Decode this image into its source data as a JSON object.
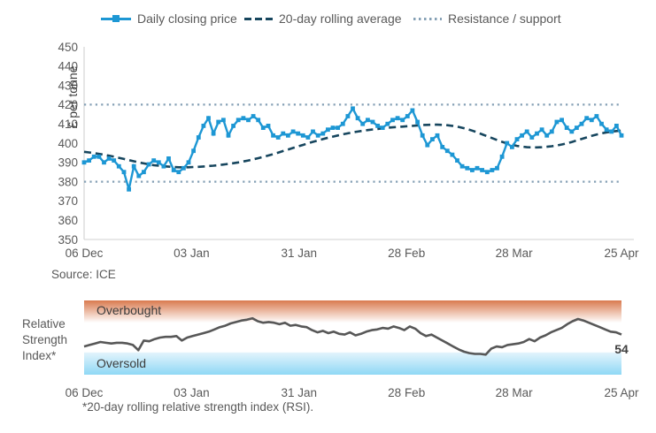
{
  "legend": {
    "items": [
      {
        "label": "Daily closing price",
        "color": "#1d97d4",
        "style": "solid-line-square-marker"
      },
      {
        "label": "20-day rolling average",
        "color": "#17465e",
        "style": "dashed-line"
      },
      {
        "label": "Resistance / support",
        "color": "#85a0b5",
        "style": "dotted-line"
      }
    ]
  },
  "main_chart": {
    "y_axis_title": "£ per tonne"
  },
  "source_note": "Source: ICE",
  "rsi_chart": {
    "axis_title_lines": [
      "Relative",
      "Strength",
      "Index*"
    ],
    "overbought_label": "Overbought",
    "oversold_label": "Oversold",
    "current_value_label": "54"
  },
  "footnote": "*20-day rolling relative strength index (RSI).",
  "colors": {
    "daily_line": "#1d97d4",
    "rolling_average": "#17465e",
    "resistance_support": "#85a0b5",
    "axis_line": "#d9d9d9",
    "tick_text": "#595959",
    "rsi_line": "#575757",
    "overbought_gradient_top": "#d97a4f",
    "oversold_gradient_bottom": "#8fd8f5"
  },
  "chart_data": [
    {
      "type": "line",
      "ylabel": "£ per tonne",
      "ylim": [
        350,
        450
      ],
      "y_ticks": [
        350,
        360,
        370,
        380,
        390,
        400,
        410,
        420,
        430,
        440,
        450
      ],
      "x_tick_labels": [
        "06 Dec",
        "03 Jan",
        "31 Jan",
        "28 Feb",
        "28 Mar",
        "25 Apr"
      ],
      "levels": [
        420,
        380
      ],
      "levels_name": "Resistance / support",
      "grid": false,
      "legend_position": "top",
      "series": [
        {
          "name": "Daily closing price",
          "color": "#1d97d4",
          "style": "solid-markers",
          "values": [
            390,
            391,
            393,
            393,
            390,
            392,
            391,
            388,
            385,
            376,
            388,
            383,
            385,
            389,
            391,
            390,
            388,
            392,
            386,
            385,
            387,
            390,
            396,
            403,
            409,
            413,
            405,
            411,
            412,
            404,
            409,
            412,
            413,
            412,
            414,
            412,
            408,
            409,
            404,
            403,
            405,
            404,
            406,
            405,
            404,
            403,
            406,
            404,
            405,
            407,
            408,
            408,
            410,
            414,
            418,
            413,
            410,
            412,
            411,
            409,
            408,
            410,
            412,
            413,
            412,
            414,
            417,
            411,
            404,
            399,
            402,
            404,
            398,
            396,
            394,
            391,
            388,
            387,
            386,
            387,
            386,
            385,
            386,
            387,
            393,
            400,
            398,
            402,
            404,
            406,
            403,
            405,
            407,
            404,
            406,
            411,
            412,
            408,
            406,
            408,
            410,
            413,
            412,
            414,
            410,
            407,
            406,
            409,
            404
          ]
        },
        {
          "name": "20-day rolling average",
          "color": "#17465e",
          "style": "dashed",
          "values": [
            395.5,
            395.2,
            394.8,
            394.4,
            394.0,
            393.5,
            393.0,
            392.4,
            391.8,
            391.2,
            390.6,
            390.0,
            389.5,
            389.0,
            388.6,
            388.3,
            388.0,
            387.8,
            387.6,
            387.5,
            387.5,
            387.5,
            387.6,
            387.7,
            387.9,
            388.1,
            388.3,
            388.6,
            388.9,
            389.2,
            389.6,
            390.0,
            390.5,
            391.0,
            391.6,
            392.2,
            392.9,
            393.6,
            394.3,
            395.1,
            395.9,
            396.7,
            397.5,
            398.3,
            399.1,
            399.9,
            400.7,
            401.4,
            402.1,
            402.8,
            403.4,
            404.0,
            404.6,
            405.1,
            405.6,
            406.0,
            406.4,
            406.8,
            407.1,
            407.4,
            407.7,
            408.0,
            408.2,
            408.4,
            408.6,
            408.8,
            409.0,
            409.2,
            409.4,
            409.5,
            409.6,
            409.6,
            409.5,
            409.3,
            409.0,
            408.6,
            408.0,
            407.3,
            406.5,
            405.6,
            404.6,
            403.6,
            402.6,
            401.6,
            400.7,
            399.9,
            399.2,
            398.6,
            398.2,
            397.9,
            397.8,
            397.8,
            397.9,
            398.1,
            398.4,
            398.8,
            399.3,
            399.9,
            400.6,
            401.4,
            402.2,
            403.0,
            403.8,
            404.5,
            405.1,
            405.6,
            406.0,
            406.3,
            406.5
          ]
        }
      ]
    },
    {
      "type": "line",
      "ylabel": "Relative Strength Index*",
      "ylim": [
        0,
        100
      ],
      "x_tick_labels": [
        "06 Dec",
        "03 Jan",
        "31 Jan",
        "28 Feb",
        "28 Mar",
        "25 Apr"
      ],
      "bands": [
        {
          "label": "Overbought",
          "range": [
            70,
            100
          ]
        },
        {
          "label": "Oversold",
          "range": [
            0,
            30
          ]
        }
      ],
      "last_value": 54,
      "series": [
        {
          "name": "20-day rolling RSI",
          "color": "#575757",
          "style": "solid",
          "values": [
            38,
            40,
            42,
            44,
            43,
            42,
            43,
            43,
            42,
            40,
            33,
            46,
            45,
            48,
            50,
            51,
            51,
            52,
            46,
            50,
            52,
            54,
            56,
            58,
            61,
            64,
            66,
            69,
            71,
            73,
            74,
            76,
            72,
            70,
            71,
            70,
            68,
            70,
            66,
            67,
            65,
            64,
            60,
            57,
            59,
            56,
            58,
            55,
            54,
            57,
            53,
            55,
            58,
            60,
            61,
            63,
            62,
            65,
            63,
            60,
            65,
            62,
            56,
            52,
            54,
            50,
            46,
            42,
            38,
            34,
            31,
            29,
            28,
            28,
            27,
            35,
            38,
            37,
            40,
            41,
            42,
            44,
            48,
            45,
            50,
            53,
            57,
            60,
            63,
            68,
            72,
            75,
            73,
            70,
            67,
            64,
            61,
            58,
            57,
            54
          ]
        }
      ]
    }
  ]
}
